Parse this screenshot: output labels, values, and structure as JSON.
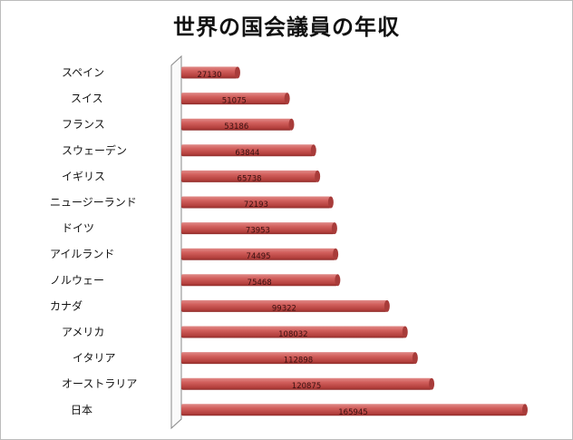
{
  "chart_data": {
    "type": "bar",
    "orientation": "horizontal",
    "title": "世界の国会議員の年収",
    "categories": [
      "スペイン",
      "スイス",
      "フランス",
      "スウェーデン",
      "イギリス",
      "ニュージーランド",
      "ドイツ",
      "アイルランド",
      "ノルウェー",
      "カナダ",
      "アメリカ",
      "イタリア",
      "オーストラリア",
      "日本"
    ],
    "values": [
      27130,
      51075,
      53186,
      63844,
      65738,
      72193,
      73953,
      74495,
      75468,
      99322,
      108032,
      112898,
      120875,
      165945
    ],
    "data_labels": true,
    "grid": false,
    "legend": "none",
    "style": "3d-cylinder",
    "bar_color": "#c0504d"
  }
}
